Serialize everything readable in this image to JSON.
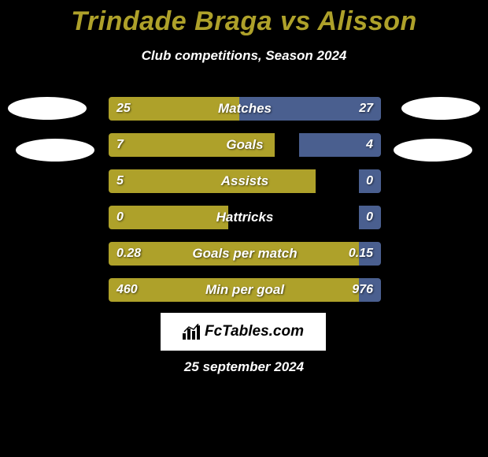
{
  "title": "Trindade Braga vs Alisson",
  "subtitle": "Club competitions, Season 2024",
  "date": "25 september 2024",
  "logo_text": "FcTables.com",
  "colors": {
    "left_bar": "#aea12a",
    "right_bar": "#4a5f8f",
    "title": "#aea12a",
    "background": "#000000",
    "text": "#ffffff"
  },
  "stats": [
    {
      "label": "Matches",
      "left_val": "25",
      "right_val": "27",
      "left_pct": 48,
      "right_pct": 52
    },
    {
      "label": "Goals",
      "left_val": "7",
      "right_val": "4",
      "left_pct": 61,
      "right_pct": 30
    },
    {
      "label": "Assists",
      "left_val": "5",
      "right_val": "0",
      "left_pct": 76,
      "right_pct": 8
    },
    {
      "label": "Hattricks",
      "left_val": "0",
      "right_val": "0",
      "left_pct": 44,
      "right_pct": 8
    },
    {
      "label": "Goals per match",
      "left_val": "0.28",
      "right_val": "0.15",
      "left_pct": 92,
      "right_pct": 8
    },
    {
      "label": "Min per goal",
      "left_val": "460",
      "right_val": "976",
      "left_pct": 92,
      "right_pct": 8
    }
  ],
  "fonts": {
    "title_size": 34,
    "subtitle_size": 17,
    "stat_label_size": 17,
    "stat_value_size": 16,
    "date_size": 17
  }
}
